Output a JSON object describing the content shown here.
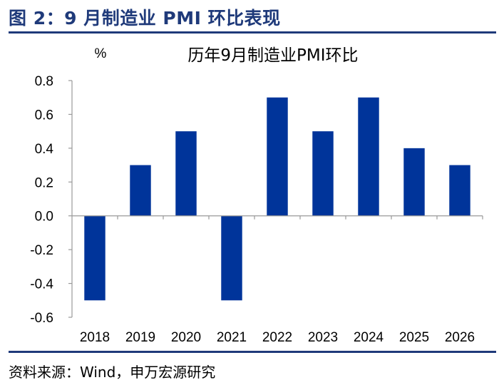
{
  "figure": {
    "title": "图 2：9 月制造业 PMI 环比表现",
    "source": "资料来源：Wind，申万宏源研究"
  },
  "colors": {
    "accent": "#1f3a7a",
    "bar": "#00349a"
  },
  "chart_data": {
    "type": "bar",
    "title": "历年9月制造业PMI环比",
    "ylabel": "%",
    "xlabel": "",
    "categories": [
      "2018",
      "2019",
      "2020",
      "2021",
      "2022",
      "2023",
      "2024",
      "2025",
      "2026"
    ],
    "values": [
      -0.5,
      0.3,
      0.5,
      -0.5,
      0.7,
      0.5,
      0.7,
      0.4,
      0.3
    ],
    "ylim": [
      -0.6,
      0.8
    ],
    "yticks": [
      "0.8",
      "0.6",
      "0.4",
      "0.2",
      "0.0",
      "-0.2",
      "-0.4",
      "-0.6"
    ],
    "ytick_values": [
      0.8,
      0.6,
      0.4,
      0.2,
      0.0,
      -0.2,
      -0.4,
      -0.6
    ],
    "grid": false,
    "legend": "none"
  }
}
